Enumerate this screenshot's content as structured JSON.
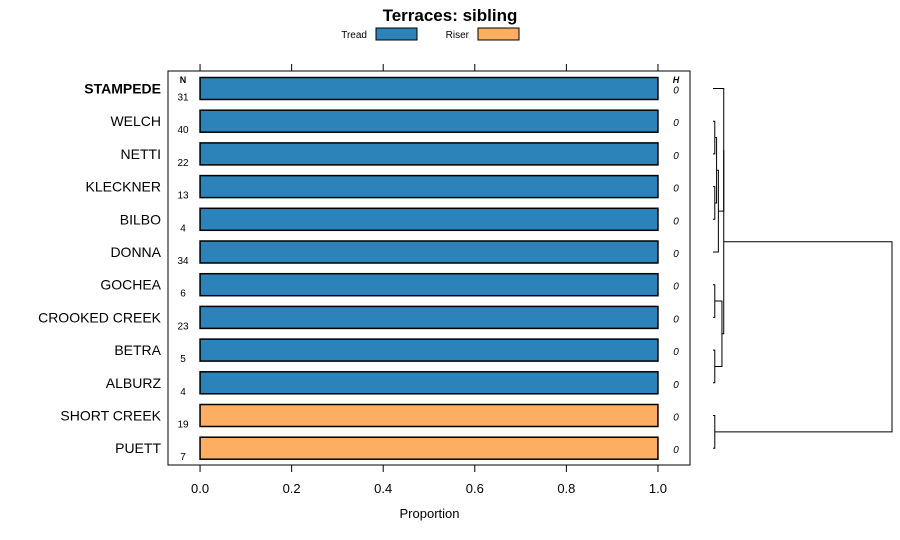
{
  "chart_data": {
    "type": "bar",
    "title": "Terraces: sibling",
    "xlabel": "Proportion",
    "ylabel": "",
    "xlim": [
      -0.07,
      1.07
    ],
    "x_ticks": [
      "0.0",
      "0.2",
      "0.4",
      "0.6",
      "0.8",
      "1.0"
    ],
    "x_tick_values": [
      0,
      0.2,
      0.4,
      0.6,
      0.8,
      1.0
    ],
    "legend": [
      {
        "name": "Tread",
        "color": "#2b83ba"
      },
      {
        "name": "Riser",
        "color": "#fdae61"
      }
    ],
    "n_header": "N",
    "h_header": "H",
    "highlighted": "STAMPEDE",
    "categories": [
      "STAMPEDE",
      "WELCH",
      "NETTI",
      "KLECKNER",
      "BILBO",
      "DONNA",
      "GOCHEA",
      "CROOKED CREEK",
      "BETRA",
      "ALBURZ",
      "SHORT CREEK",
      "PUETT"
    ],
    "series": [
      {
        "name": "Tread",
        "values": [
          1,
          1,
          1,
          1,
          1,
          1,
          1,
          1,
          1,
          1,
          0,
          0
        ]
      },
      {
        "name": "Riser",
        "values": [
          0,
          0,
          0,
          0,
          0,
          0,
          0,
          0,
          0,
          0,
          1,
          1
        ]
      }
    ],
    "N": [
      "31",
      "40",
      "22",
      "13",
      "4",
      "34",
      "6",
      "23",
      "5",
      "4",
      "19",
      "7"
    ],
    "H": [
      "0",
      "0",
      "0",
      "0",
      "0",
      "0",
      "0",
      "0",
      "0",
      "0",
      "0",
      "0"
    ],
    "dendrogram": {
      "leaves": [
        "STAMPEDE",
        "WELCH",
        "NETTI",
        "KLECKNER",
        "BILBO",
        "DONNA",
        "GOCHEA",
        "CROOKED CREEK",
        "BETRA",
        "ALBURZ",
        "SHORT CREEK",
        "PUETT"
      ],
      "merges": [
        {
          "a": 1,
          "b": 2,
          "height": 0.01
        },
        {
          "a": 3,
          "b": 4,
          "height": 0.01
        },
        {
          "a": "m0",
          "b": "m1",
          "height": 0.02
        },
        {
          "a": "m2",
          "b": 5,
          "height": 0.03
        },
        {
          "a": 0,
          "b": "m3",
          "height": 0.06
        },
        {
          "a": 6,
          "b": 7,
          "height": 0.01
        },
        {
          "a": 8,
          "b": 9,
          "height": 0.01
        },
        {
          "a": "m5",
          "b": "m6",
          "height": 0.05
        },
        {
          "a": "m4",
          "b": "m7",
          "height": 0.06
        },
        {
          "a": 10,
          "b": 11,
          "height": 0.01
        },
        {
          "a": "m8",
          "b": "m9",
          "height": 1.0
        }
      ]
    }
  }
}
